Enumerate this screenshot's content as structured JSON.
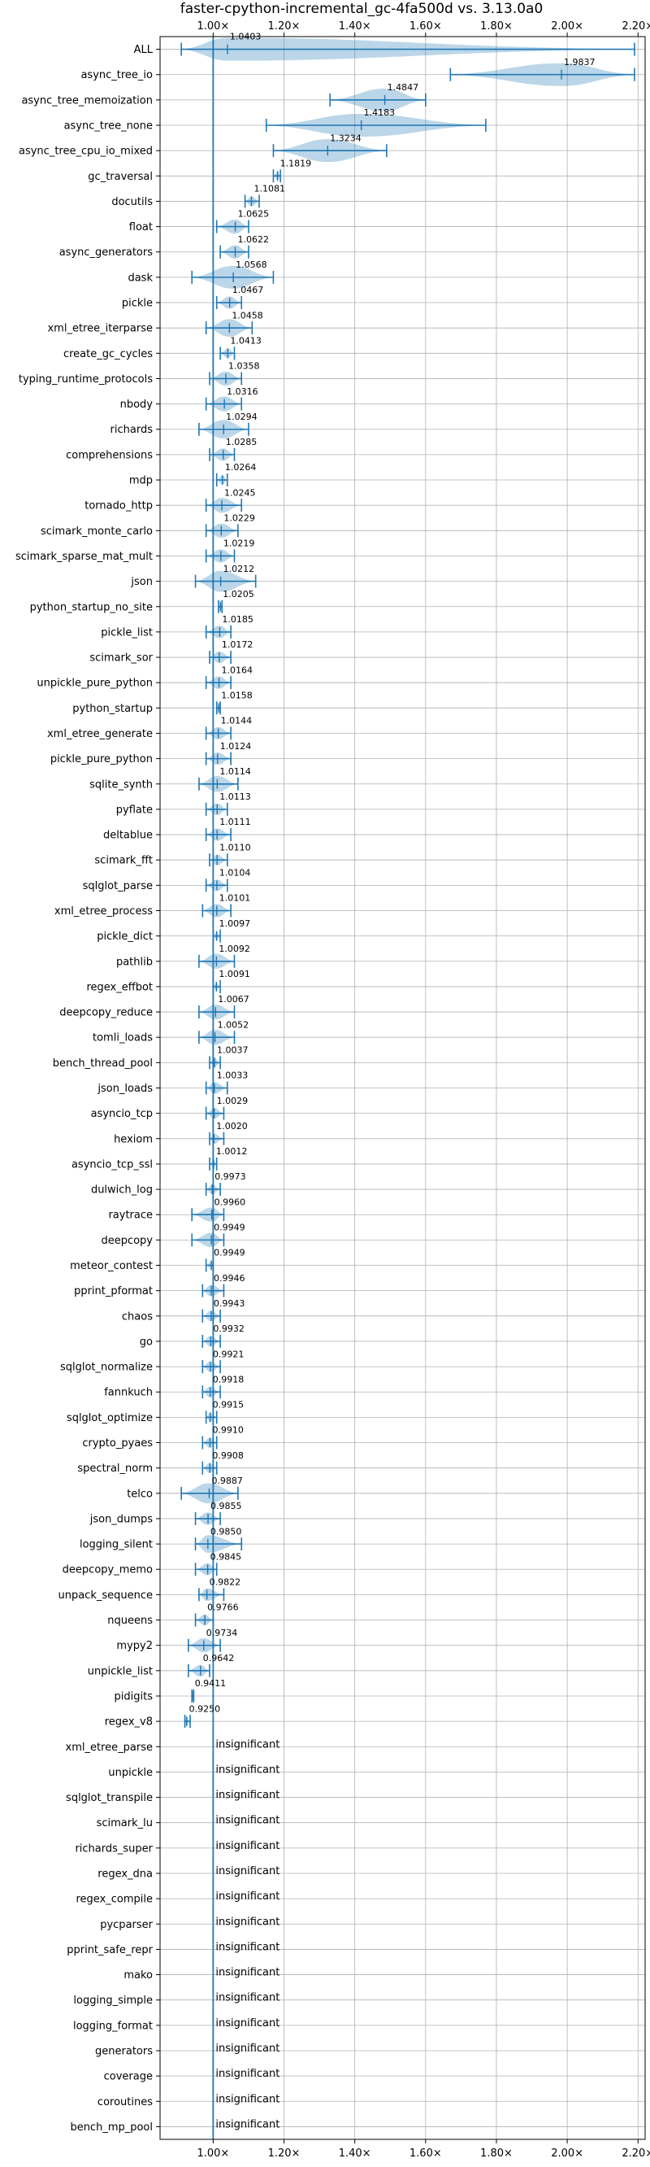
{
  "chart_data": {
    "type": "violin",
    "title": "faster-cpython-incremental_gc-4fa500d vs. 3.13.0a0",
    "xlabel": "",
    "ylabel": "",
    "xlim": [
      0.85,
      2.22
    ],
    "xticks": [
      1.0,
      1.2,
      1.4,
      1.6,
      1.8,
      2.0,
      2.2
    ],
    "xtick_labels": [
      "1.00×",
      "1.20×",
      "1.40×",
      "1.60×",
      "1.80×",
      "2.00×",
      "2.20×"
    ],
    "reference_line": 1.0,
    "grid": true,
    "insignificant_label": "insignificant",
    "categories": [
      "ALL",
      "async_tree_io",
      "async_tree_memoization",
      "async_tree_none",
      "async_tree_cpu_io_mixed",
      "gc_traversal",
      "docutils",
      "float",
      "async_generators",
      "dask",
      "pickle",
      "xml_etree_iterparse",
      "create_gc_cycles",
      "typing_runtime_protocols",
      "nbody",
      "richards",
      "comprehensions",
      "mdp",
      "tornado_http",
      "scimark_monte_carlo",
      "scimark_sparse_mat_mult",
      "json",
      "python_startup_no_site",
      "pickle_list",
      "scimark_sor",
      "unpickle_pure_python",
      "python_startup",
      "xml_etree_generate",
      "pickle_pure_python",
      "sqlite_synth",
      "pyflate",
      "deltablue",
      "scimark_fft",
      "sqlglot_parse",
      "xml_etree_process",
      "pickle_dict",
      "pathlib",
      "regex_effbot",
      "deepcopy_reduce",
      "tomli_loads",
      "bench_thread_pool",
      "json_loads",
      "asyncio_tcp",
      "hexiom",
      "asyncio_tcp_ssl",
      "dulwich_log",
      "raytrace",
      "deepcopy",
      "meteor_contest",
      "pprint_pformat",
      "chaos",
      "go",
      "sqlglot_normalize",
      "fannkuch",
      "sqlglot_optimize",
      "crypto_pyaes",
      "spectral_norm",
      "telco",
      "json_dumps",
      "logging_silent",
      "deepcopy_memo",
      "unpack_sequence",
      "nqueens",
      "mypy2",
      "unpickle_list",
      "pidigits",
      "regex_v8",
      "xml_etree_parse",
      "unpickle",
      "sqlglot_transpile",
      "scimark_lu",
      "richards_super",
      "regex_dna",
      "regex_compile",
      "pycparser",
      "pprint_safe_repr",
      "mako",
      "logging_simple",
      "logging_format",
      "generators",
      "coverage",
      "coroutines",
      "bench_mp_pool"
    ],
    "medians": [
      "1.0403",
      "1.9837",
      "1.4847",
      "1.4183",
      "1.3234",
      "1.1819",
      "1.1081",
      "1.0625",
      "1.0622",
      "1.0568",
      "1.0467",
      "1.0458",
      "1.0413",
      "1.0358",
      "1.0316",
      "1.0294",
      "1.0285",
      "1.0264",
      "1.0245",
      "1.0229",
      "1.0219",
      "1.0212",
      "1.0205",
      "1.0185",
      "1.0172",
      "1.0164",
      "1.0158",
      "1.0144",
      "1.0124",
      "1.0114",
      "1.0113",
      "1.0111",
      "1.0110",
      "1.0104",
      "1.0101",
      "1.0097",
      "1.0092",
      "1.0091",
      "1.0067",
      "1.0052",
      "1.0037",
      "1.0033",
      "1.0029",
      "1.0020",
      "1.0012",
      "0.9973",
      "0.9960",
      "0.9949",
      "0.9949",
      "0.9946",
      "0.9943",
      "0.9932",
      "0.9921",
      "0.9918",
      "0.9915",
      "0.9910",
      "0.9908",
      "0.9887",
      "0.9855",
      "0.9850",
      "0.9845",
      "0.9822",
      "0.9766",
      "0.9734",
      "0.9642",
      "0.9411",
      "0.9250",
      "",
      "",
      "",
      "",
      "",
      "",
      "",
      "",
      "",
      "",
      "",
      "",
      "",
      "",
      "",
      ""
    ],
    "ranges": [
      [
        0.91,
        2.19
      ],
      [
        1.67,
        2.19
      ],
      [
        1.33,
        1.6
      ],
      [
        1.15,
        1.77
      ],
      [
        1.17,
        1.49
      ],
      [
        1.17,
        1.19
      ],
      [
        1.09,
        1.13
      ],
      [
        1.01,
        1.1
      ],
      [
        1.02,
        1.1
      ],
      [
        0.94,
        1.17
      ],
      [
        1.01,
        1.08
      ],
      [
        0.98,
        1.11
      ],
      [
        1.02,
        1.06
      ],
      [
        0.99,
        1.08
      ],
      [
        0.98,
        1.08
      ],
      [
        0.96,
        1.1
      ],
      [
        0.99,
        1.06
      ],
      [
        1.01,
        1.04
      ],
      [
        0.98,
        1.08
      ],
      [
        0.98,
        1.07
      ],
      [
        0.98,
        1.06
      ],
      [
        0.95,
        1.12
      ],
      [
        1.015,
        1.025
      ],
      [
        0.98,
        1.05
      ],
      [
        0.99,
        1.05
      ],
      [
        0.98,
        1.05
      ],
      [
        1.01,
        1.02
      ],
      [
        0.98,
        1.05
      ],
      [
        0.98,
        1.05
      ],
      [
        0.96,
        1.07
      ],
      [
        0.98,
        1.04
      ],
      [
        0.98,
        1.05
      ],
      [
        0.99,
        1.04
      ],
      [
        0.98,
        1.04
      ],
      [
        0.97,
        1.05
      ],
      [
        1.0,
        1.02
      ],
      [
        0.96,
        1.06
      ],
      [
        1.0,
        1.02
      ],
      [
        0.96,
        1.06
      ],
      [
        0.96,
        1.06
      ],
      [
        0.99,
        1.02
      ],
      [
        0.98,
        1.04
      ],
      [
        0.98,
        1.03
      ],
      [
        0.99,
        1.03
      ],
      [
        0.99,
        1.01
      ],
      [
        0.98,
        1.02
      ],
      [
        0.94,
        1.03
      ],
      [
        0.94,
        1.03
      ],
      [
        0.98,
        1.0
      ],
      [
        0.97,
        1.03
      ],
      [
        0.97,
        1.02
      ],
      [
        0.97,
        1.02
      ],
      [
        0.97,
        1.02
      ],
      [
        0.97,
        1.02
      ],
      [
        0.98,
        1.01
      ],
      [
        0.97,
        1.01
      ],
      [
        0.97,
        1.01
      ],
      [
        0.91,
        1.07
      ],
      [
        0.95,
        1.02
      ],
      [
        0.95,
        1.08
      ],
      [
        0.95,
        1.01
      ],
      [
        0.96,
        1.03
      ],
      [
        0.95,
        1.0
      ],
      [
        0.93,
        1.02
      ],
      [
        0.93,
        0.99
      ],
      [
        0.94,
        0.945
      ],
      [
        0.92,
        0.935
      ],
      null,
      null,
      null,
      null,
      null,
      null,
      null,
      null,
      null,
      null,
      null,
      null,
      null,
      null,
      null,
      null
    ]
  }
}
